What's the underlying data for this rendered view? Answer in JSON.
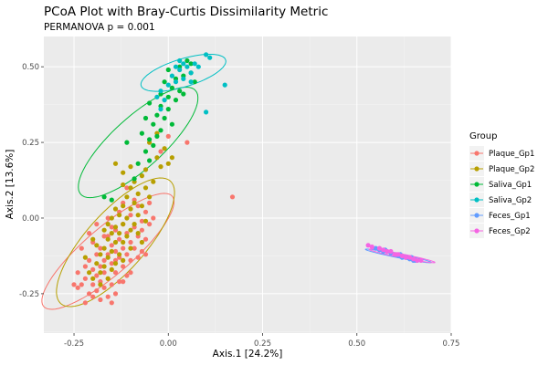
{
  "chart_data": {
    "type": "scatter",
    "title": "PCoA Plot with Bray-Curtis Dissimilarity Metric",
    "subtitle": "PERMANOVA p = 0.001",
    "xlabel": "Axis.1   [24.2%]",
    "ylabel": "Axis.2   [13.6%]",
    "xlim": [
      -0.33,
      0.75
    ],
    "ylim": [
      -0.38,
      0.6
    ],
    "xticks": [
      -0.25,
      0.0,
      0.25,
      0.5,
      0.75
    ],
    "xtick_labels": [
      "-0.25",
      "0.00",
      "0.25",
      "0.50",
      "0.75"
    ],
    "yticks": [
      -0.25,
      0.0,
      0.25,
      0.5
    ],
    "ytick_labels": [
      "-0.25",
      "0.00",
      "0.25",
      "0.50"
    ],
    "grid": true,
    "legend": {
      "title": "Group",
      "position": "right"
    },
    "series": [
      {
        "name": "Plaque_Gp1",
        "color": "#F8766D",
        "ellipse": {
          "center": [
            -0.16,
            -0.11
          ],
          "semi_axes": [
            0.25,
            0.07
          ],
          "angle_deg": 48
        },
        "points": [
          [
            -0.24,
            -0.23
          ],
          [
            -0.23,
            -0.22
          ],
          [
            -0.22,
            -0.2
          ],
          [
            -0.21,
            -0.25
          ],
          [
            -0.21,
            -0.14
          ],
          [
            -0.2,
            -0.22
          ],
          [
            -0.2,
            -0.17
          ],
          [
            -0.19,
            -0.12
          ],
          [
            -0.19,
            -0.19
          ],
          [
            -0.19,
            -0.24
          ],
          [
            -0.18,
            -0.16
          ],
          [
            -0.18,
            -0.21
          ],
          [
            -0.18,
            -0.1
          ],
          [
            -0.17,
            -0.14
          ],
          [
            -0.17,
            -0.18
          ],
          [
            -0.17,
            -0.23
          ],
          [
            -0.16,
            -0.06
          ],
          [
            -0.16,
            -0.12
          ],
          [
            -0.16,
            -0.2
          ],
          [
            -0.16,
            -0.26
          ],
          [
            -0.15,
            -0.09
          ],
          [
            -0.15,
            -0.15
          ],
          [
            -0.15,
            -0.22
          ],
          [
            -0.14,
            -0.04
          ],
          [
            -0.14,
            -0.11
          ],
          [
            -0.14,
            -0.18
          ],
          [
            -0.14,
            -0.25
          ],
          [
            -0.13,
            -0.07
          ],
          [
            -0.13,
            -0.13
          ],
          [
            -0.13,
            -0.21
          ],
          [
            -0.12,
            -0.02
          ],
          [
            -0.12,
            -0.1
          ],
          [
            -0.12,
            -0.16
          ],
          [
            -0.11,
            -0.05
          ],
          [
            -0.11,
            -0.12
          ],
          [
            -0.11,
            -0.19
          ],
          [
            -0.1,
            0.01
          ],
          [
            -0.1,
            -0.08
          ],
          [
            -0.1,
            -0.14
          ],
          [
            -0.09,
            -0.03
          ],
          [
            -0.09,
            -0.1
          ],
          [
            -0.08,
            0.04
          ],
          [
            -0.08,
            -0.06
          ],
          [
            -0.07,
            -0.01
          ],
          [
            -0.07,
            -0.11
          ],
          [
            -0.06,
            0.02
          ],
          [
            -0.06,
            -0.07
          ],
          [
            -0.05,
            -0.02
          ],
          [
            -0.21,
            -0.05
          ],
          [
            -0.23,
            -0.1
          ],
          [
            -0.22,
            -0.16
          ],
          [
            -0.2,
            -0.08
          ],
          [
            -0.19,
            -0.02
          ],
          [
            -0.17,
            -0.06
          ],
          [
            -0.16,
            0.0
          ],
          [
            -0.15,
            -0.03
          ],
          [
            -0.13,
            0.02
          ],
          [
            -0.12,
            0.05
          ],
          [
            -0.18,
            -0.27
          ],
          [
            -0.15,
            -0.28
          ],
          [
            -0.14,
            -0.14
          ],
          [
            -0.12,
            -0.21
          ],
          [
            -0.1,
            -0.18
          ],
          [
            -0.08,
            -0.13
          ],
          [
            -0.07,
            -0.04
          ],
          [
            -0.06,
            -0.12
          ],
          [
            -0.05,
            0.05
          ],
          [
            -0.04,
            0.0
          ],
          [
            -0.02,
            0.22
          ],
          [
            0.0,
            0.27
          ],
          [
            0.05,
            0.25
          ],
          [
            0.17,
            0.07
          ],
          [
            -0.25,
            -0.22
          ],
          [
            -0.22,
            -0.28
          ],
          [
            -0.2,
            -0.26
          ],
          [
            -0.24,
            -0.18
          ],
          [
            -0.11,
            0.1
          ],
          [
            -0.09,
            0.06
          ]
        ]
      },
      {
        "name": "Plaque_Gp2",
        "color": "#B79F00",
        "ellipse": {
          "center": [
            -0.14,
            -0.08
          ],
          "semi_axes": [
            0.25,
            0.085
          ],
          "angle_deg": 56
        },
        "points": [
          [
            -0.2,
            -0.2
          ],
          [
            -0.19,
            -0.15
          ],
          [
            -0.19,
            -0.09
          ],
          [
            -0.18,
            -0.12
          ],
          [
            -0.18,
            -0.18
          ],
          [
            -0.17,
            -0.04
          ],
          [
            -0.17,
            -0.1
          ],
          [
            -0.17,
            -0.16
          ],
          [
            -0.16,
            -0.02
          ],
          [
            -0.16,
            -0.07
          ],
          [
            -0.16,
            -0.13
          ],
          [
            -0.15,
            0.0
          ],
          [
            -0.15,
            -0.05
          ],
          [
            -0.15,
            -0.11
          ],
          [
            -0.15,
            -0.17
          ],
          [
            -0.14,
            0.03
          ],
          [
            -0.14,
            -0.03
          ],
          [
            -0.14,
            -0.08
          ],
          [
            -0.13,
            0.01
          ],
          [
            -0.13,
            -0.05
          ],
          [
            -0.13,
            -0.12
          ],
          [
            -0.12,
            0.04
          ],
          [
            -0.12,
            -0.02
          ],
          [
            -0.12,
            -0.08
          ],
          [
            -0.11,
            0.07
          ],
          [
            -0.11,
            0.0
          ],
          [
            -0.11,
            -0.06
          ],
          [
            -0.1,
            0.1
          ],
          [
            -0.1,
            0.03
          ],
          [
            -0.1,
            -0.04
          ],
          [
            -0.09,
            0.12
          ],
          [
            -0.09,
            0.05
          ],
          [
            -0.09,
            -0.02
          ],
          [
            -0.08,
            0.08
          ],
          [
            -0.08,
            0.01
          ],
          [
            -0.07,
            0.14
          ],
          [
            -0.07,
            0.04
          ],
          [
            -0.06,
            0.1
          ],
          [
            -0.06,
            -0.01
          ],
          [
            -0.05,
            0.07
          ],
          [
            -0.04,
            0.12
          ],
          [
            -0.03,
            0.2
          ],
          [
            -0.02,
            0.17
          ],
          [
            -0.01,
            0.23
          ],
          [
            0.0,
            0.18
          ],
          [
            0.01,
            0.2
          ],
          [
            -0.05,
            0.25
          ],
          [
            -0.03,
            0.28
          ],
          [
            -0.14,
            0.18
          ],
          [
            -0.12,
            0.15
          ],
          [
            -0.22,
            -0.13
          ],
          [
            -0.21,
            -0.18
          ],
          [
            -0.2,
            -0.07
          ],
          [
            -0.18,
            -0.22
          ],
          [
            -0.16,
            -0.2
          ],
          [
            -0.14,
            -0.15
          ],
          [
            -0.12,
            -0.14
          ],
          [
            -0.1,
            -0.1
          ],
          [
            -0.08,
            -0.05
          ],
          [
            -0.07,
            -0.08
          ],
          [
            -0.12,
            0.11
          ],
          [
            -0.06,
            0.16
          ],
          [
            -0.1,
            0.17
          ]
        ]
      },
      {
        "name": "Saliva_Gp1",
        "color": "#00BA38",
        "ellipse": {
          "center": [
            -0.08,
            0.25
          ],
          "semi_axes": [
            0.23,
            0.075
          ],
          "angle_deg": 50
        },
        "points": [
          [
            -0.09,
            0.13
          ],
          [
            -0.08,
            0.18
          ],
          [
            -0.06,
            0.22
          ],
          [
            -0.05,
            0.26
          ],
          [
            -0.05,
            0.19
          ],
          [
            -0.04,
            0.31
          ],
          [
            -0.04,
            0.24
          ],
          [
            -0.03,
            0.34
          ],
          [
            -0.02,
            0.29
          ],
          [
            -0.02,
            0.37
          ],
          [
            -0.01,
            0.33
          ],
          [
            0.0,
            0.4
          ],
          [
            0.0,
            0.36
          ],
          [
            0.01,
            0.43
          ],
          [
            0.02,
            0.39
          ],
          [
            0.02,
            0.46
          ],
          [
            0.03,
            0.42
          ],
          [
            0.03,
            0.5
          ],
          [
            0.04,
            0.47
          ],
          [
            0.05,
            0.52
          ],
          [
            0.06,
            0.48
          ],
          [
            0.07,
            0.45
          ],
          [
            -0.07,
            0.28
          ],
          [
            -0.06,
            0.33
          ],
          [
            -0.03,
            0.27
          ],
          [
            0.01,
            0.31
          ],
          [
            -0.11,
            0.25
          ],
          [
            -0.15,
            0.06
          ],
          [
            -0.17,
            0.07
          ],
          [
            0.04,
            0.41
          ],
          [
            0.06,
            0.51
          ],
          [
            -0.01,
            0.45
          ],
          [
            0.0,
            0.49
          ],
          [
            -0.02,
            0.41
          ],
          [
            -0.05,
            0.38
          ]
        ]
      },
      {
        "name": "Saliva_Gp2",
        "color": "#00BFC4",
        "ellipse": {
          "center": [
            0.04,
            0.48
          ],
          "semi_axes": [
            0.12,
            0.045
          ],
          "angle_deg": 22
        },
        "points": [
          [
            -0.03,
            0.4
          ],
          [
            -0.02,
            0.42
          ],
          [
            -0.01,
            0.39
          ],
          [
            0.0,
            0.44
          ],
          [
            0.01,
            0.47
          ],
          [
            0.02,
            0.45
          ],
          [
            0.02,
            0.5
          ],
          [
            0.03,
            0.49
          ],
          [
            0.04,
            0.51
          ],
          [
            0.04,
            0.46
          ],
          [
            0.05,
            0.5
          ],
          [
            0.06,
            0.48
          ],
          [
            0.07,
            0.51
          ],
          [
            0.08,
            0.5
          ],
          [
            0.1,
            0.54
          ],
          [
            0.11,
            0.53
          ],
          [
            0.15,
            0.44
          ],
          [
            0.1,
            0.35
          ],
          [
            -0.02,
            0.36
          ],
          [
            0.03,
            0.52
          ],
          [
            0.06,
            0.45
          ]
        ]
      },
      {
        "name": "Feces_Gp1",
        "color": "#619CFF",
        "ellipse": {
          "center": [
            0.61,
            -0.125
          ],
          "semi_axes": [
            0.09,
            0.006
          ],
          "angle_deg": -14
        },
        "points": [
          [
            0.55,
            -0.1
          ],
          [
            0.56,
            -0.105
          ],
          [
            0.57,
            -0.11
          ],
          [
            0.575,
            -0.105
          ],
          [
            0.58,
            -0.11
          ],
          [
            0.59,
            -0.115
          ],
          [
            0.6,
            -0.12
          ],
          [
            0.61,
            -0.125
          ],
          [
            0.615,
            -0.12
          ],
          [
            0.62,
            -0.13
          ],
          [
            0.63,
            -0.13
          ],
          [
            0.64,
            -0.135
          ],
          [
            0.645,
            -0.13
          ],
          [
            0.65,
            -0.14
          ],
          [
            0.655,
            -0.14
          ],
          [
            0.66,
            -0.14
          ]
        ]
      },
      {
        "name": "Feces_Gp2",
        "color": "#F564E3",
        "ellipse": {
          "center": [
            0.62,
            -0.125
          ],
          "semi_axes": [
            0.09,
            0.006
          ],
          "angle_deg": -14
        },
        "points": [
          [
            0.53,
            -0.09
          ],
          [
            0.54,
            -0.095
          ],
          [
            0.56,
            -0.1
          ],
          [
            0.57,
            -0.105
          ],
          [
            0.58,
            -0.11
          ],
          [
            0.59,
            -0.11
          ],
          [
            0.6,
            -0.12
          ],
          [
            0.605,
            -0.12
          ],
          [
            0.61,
            -0.12
          ],
          [
            0.62,
            -0.125
          ],
          [
            0.63,
            -0.13
          ],
          [
            0.64,
            -0.13
          ],
          [
            0.65,
            -0.135
          ],
          [
            0.66,
            -0.14
          ],
          [
            0.67,
            -0.14
          ]
        ]
      }
    ]
  }
}
